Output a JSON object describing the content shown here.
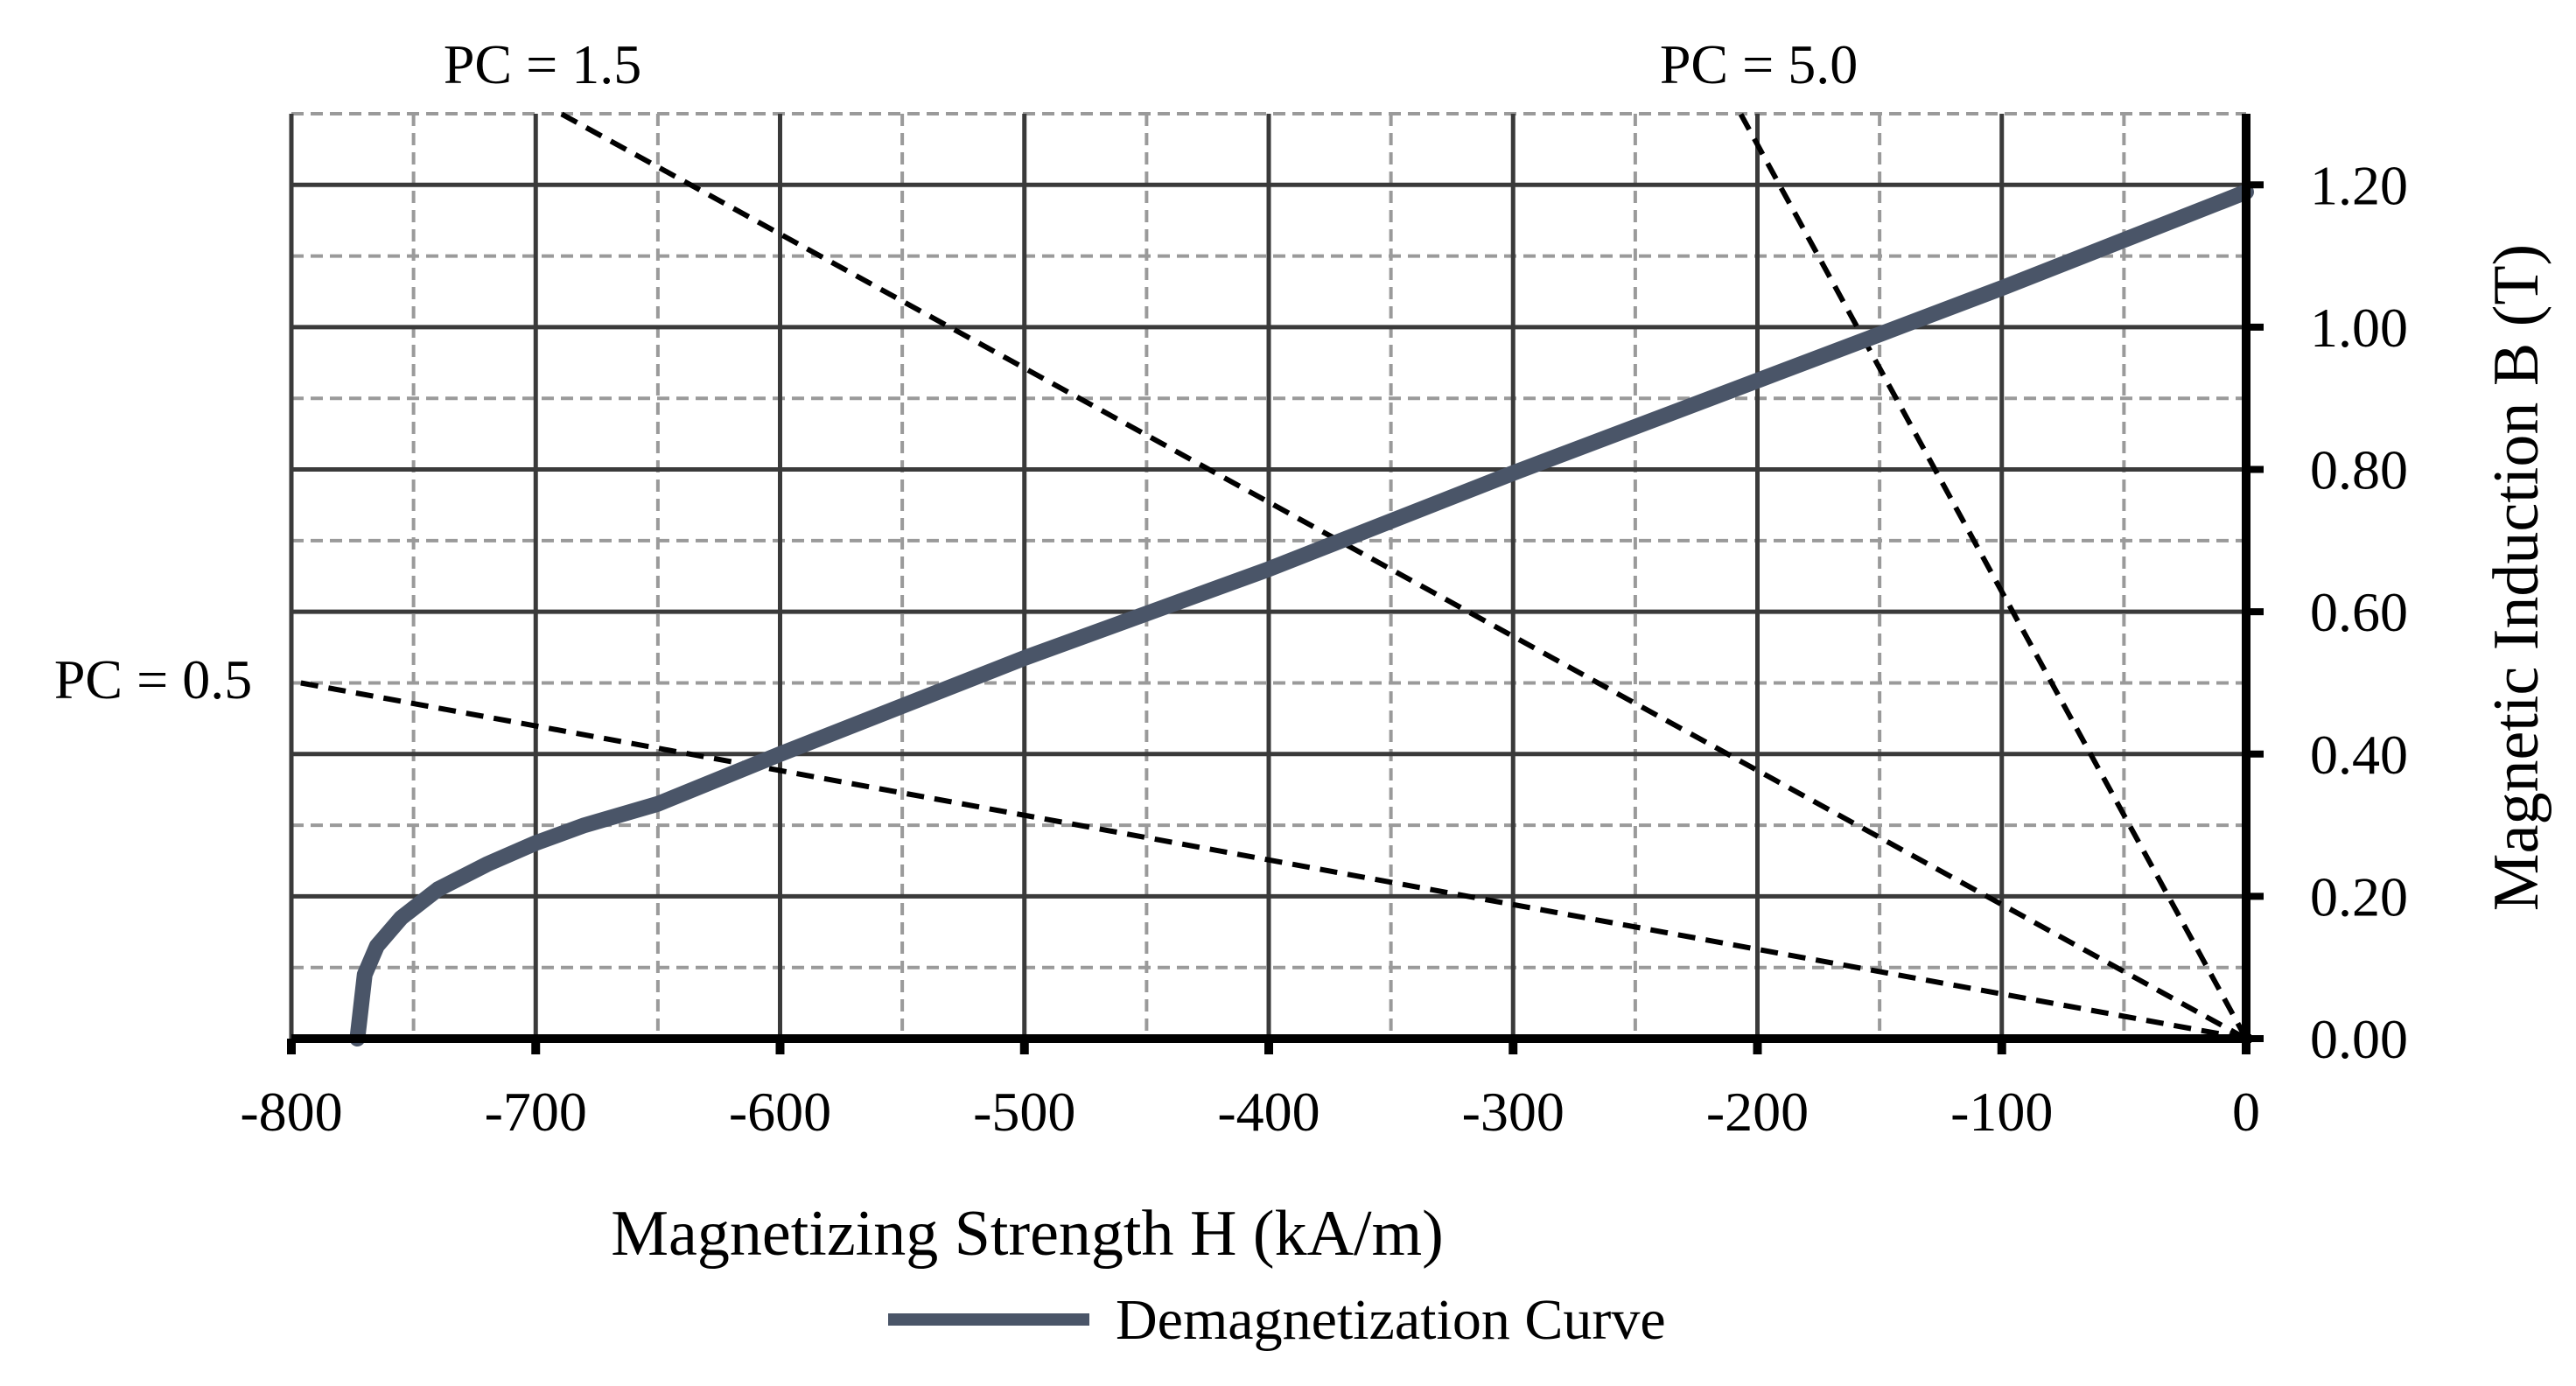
{
  "chart_data": {
    "type": "line",
    "title": "",
    "xlabel": "Magnetizing Strength H (kA/m)",
    "ylabel": "Magnetic Induction B (T)",
    "xlim": [
      -800,
      0
    ],
    "ylim": [
      0,
      1.3
    ],
    "x_ticks": [
      -800,
      -700,
      -600,
      -500,
      -400,
      -300,
      -200,
      -100,
      0
    ],
    "x_tick_labels": [
      "-800",
      "-700",
      "-600",
      "-500",
      "-400",
      "-300",
      "-200",
      "-100",
      "0"
    ],
    "y_ticks": [
      0,
      0.2,
      0.4,
      0.6,
      0.8,
      1.0,
      1.2
    ],
    "y_tick_labels": [
      "0.00",
      "0.20",
      "0.40",
      "0.60",
      "0.80",
      "1.00",
      "1.20"
    ],
    "minor_grid_x_step": 50,
    "minor_grid_y_step": 0.1,
    "y_axis_position": "right",
    "grid": true,
    "series": [
      {
        "name": "Demagnetization Curve",
        "color": "#4a5568",
        "style": "solid",
        "x": [
          -773,
          -772,
          -770,
          -765,
          -755,
          -740,
          -720,
          -700,
          -680,
          -650,
          -600,
          -500,
          -400,
          -300,
          -200,
          -100,
          0
        ],
        "y": [
          0.0,
          0.03,
          0.09,
          0.13,
          0.17,
          0.21,
          0.245,
          0.275,
          0.3,
          0.33,
          0.4,
          0.535,
          0.66,
          0.795,
          0.925,
          1.055,
          1.19
        ]
      }
    ],
    "load_lines": [
      {
        "label": "PC = 0.5",
        "slope_T_per_kAm": -0.000628,
        "label_position": "left"
      },
      {
        "label": "PC = 1.5",
        "slope_T_per_kAm": -0.001885,
        "label_position": "top-left"
      },
      {
        "label": "PC = 5.0",
        "slope_T_per_kAm": -0.006283,
        "label_position": "top-right"
      }
    ],
    "legend": {
      "position": "bottom-center",
      "entries": [
        "Demagnetization Curve"
      ]
    }
  }
}
